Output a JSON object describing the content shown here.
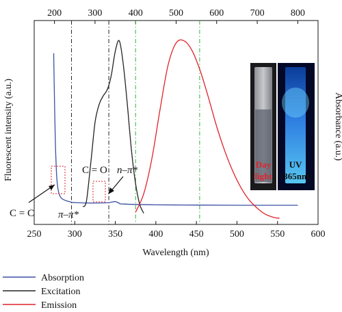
{
  "chart_data": {
    "type": "line",
    "xlabel": "Wavelength (nm)",
    "ylabel_left": "Fluorescent intensity (a.u.)",
    "ylabel_right": "Absorbance (a.u.)",
    "xlim": [
      250,
      600
    ],
    "top_xlim": [
      150,
      850
    ],
    "x_ticks": [
      "250",
      "300",
      "350",
      "400",
      "450",
      "500",
      "550",
      "600"
    ],
    "top_ticks": [
      "200",
      "300",
      "400",
      "500",
      "600",
      "700",
      "800"
    ],
    "grid": false,
    "ylim": [
      0,
      1
    ],
    "series": [
      {
        "name": "Absorption",
        "color": "#3a4fa3",
        "axis": "bottom",
        "x": [
          274,
          275,
          276,
          277,
          278,
          280,
          283,
          287,
          292,
          296,
          300,
          320,
          340,
          345,
          350,
          355,
          360,
          400,
          450,
          500,
          550,
          575
        ],
        "y": [
          0.84,
          0.62,
          0.42,
          0.3,
          0.22,
          0.16,
          0.131,
          0.12,
          0.113,
          0.109,
          0.107,
          0.105,
          0.106,
          0.109,
          0.112,
          0.104,
          0.1,
          0.096,
          0.095,
          0.094,
          0.094,
          0.094
        ]
      },
      {
        "name": "Excitation",
        "color": "#222222",
        "axis": "top",
        "x": [
          270,
          275,
          280,
          290,
          300,
          310,
          320,
          330,
          340,
          350,
          360,
          370,
          380,
          390,
          400,
          410,
          420
        ],
        "y": [
          0.088,
          0.092,
          0.13,
          0.31,
          0.5,
          0.588,
          0.63,
          0.66,
          0.73,
          0.85,
          0.9,
          0.78,
          0.58,
          0.36,
          0.2,
          0.1,
          0.055
        ]
      },
      {
        "name": "Emission",
        "color": "#e0222a",
        "axis": "top",
        "x": [
          400,
          420,
          440,
          460,
          480,
          500,
          520,
          540,
          560,
          580,
          600,
          620,
          640,
          660,
          680,
          700,
          720,
          740,
          755
        ],
        "y": [
          0.06,
          0.15,
          0.32,
          0.56,
          0.78,
          0.89,
          0.9,
          0.85,
          0.75,
          0.62,
          0.48,
          0.36,
          0.26,
          0.18,
          0.12,
          0.08,
          0.05,
          0.035,
          0.03
        ]
      }
    ],
    "reference_lines_bottom": [
      {
        "x": 296,
        "style": "dash-dot",
        "color": "#222222"
      },
      {
        "x": 342,
        "style": "dash-dot",
        "color": "#222222"
      },
      {
        "x": 375,
        "style": "dash-dot",
        "color": "#2fae3c"
      },
      {
        "x": 454,
        "style": "dash-dot",
        "color": "#2fae3c"
      }
    ],
    "annotations": {
      "cc": "C = C",
      "pi_pi": "π–π*",
      "co": "C = O",
      "n_pi": "n–π*"
    },
    "inset": {
      "left_label_1": "Day",
      "left_label_2": "light",
      "right_label_1": "UV",
      "right_label_2": "(365nm)",
      "left_label_color": "#e0222a",
      "right_label_color": "#111111"
    },
    "legend": {
      "placement": "bottom-left",
      "entries": [
        "Absorption",
        "Excitation",
        "Emission"
      ]
    }
  }
}
